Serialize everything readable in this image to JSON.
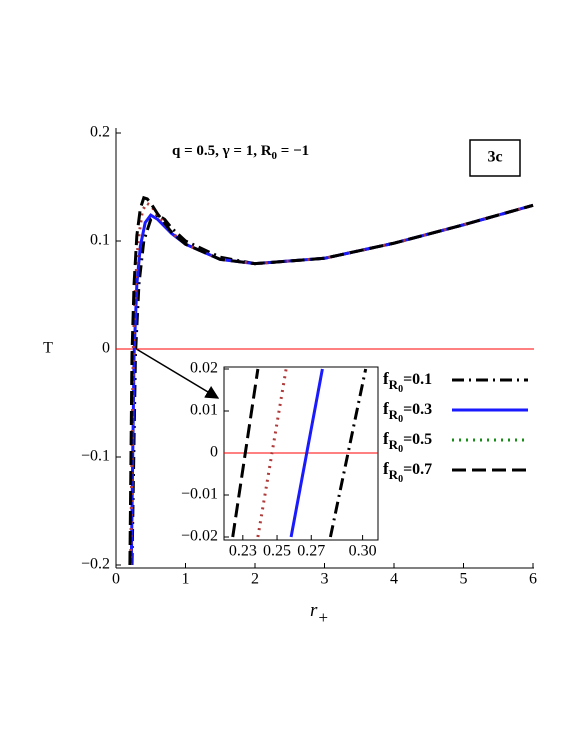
{
  "chart_data": [
    {
      "type": "line",
      "annotation": "q = 0.5, γ = 1, R0 = −1",
      "label": "3c",
      "xlabel": "r+",
      "ylabel": "T",
      "xlim": [
        0,
        6
      ],
      "ylim": [
        -0.2,
        0.2
      ],
      "xticks": [
        0,
        1,
        2,
        3,
        4,
        5,
        6
      ],
      "yticks": [
        {
          "value": -0.2,
          "label": "−0.2"
        },
        {
          "value": -0.1,
          "label": "−0.1"
        },
        0,
        0.1,
        0.2
      ],
      "hline": 0,
      "hline_color": "#ff0000",
      "legend": "right",
      "series": [
        {
          "name": "fR0=0.1",
          "color": "#000000",
          "legend_color": "#000000",
          "dash": "dashdot",
          "x": [
            0.23,
            0.28,
            0.33,
            0.4,
            0.5,
            0.6,
            0.7,
            0.8,
            1,
            1.5,
            2,
            3,
            4,
            5,
            6
          ],
          "values": [
            -0.2,
            -0.005,
            0.06,
            0.1,
            0.12,
            0.124,
            0.12,
            0.112,
            0.1,
            0.085,
            0.079,
            0.084,
            0.098,
            0.115,
            0.133
          ]
        },
        {
          "name": "fR0=0.3",
          "color": "#1a1aff",
          "legend_color": "#1a1aff",
          "dash": "solid",
          "x": [
            0.22,
            0.26,
            0.3,
            0.35,
            0.42,
            0.5,
            0.6,
            0.8,
            1,
            1.5,
            2,
            3,
            4,
            5,
            6
          ],
          "values": [
            -0.2,
            -0.005,
            0.06,
            0.095,
            0.117,
            0.124,
            0.12,
            0.107,
            0.097,
            0.083,
            0.079,
            0.084,
            0.098,
            0.115,
            0.133
          ]
        },
        {
          "name": "fR0=0.5",
          "color": "#b03a3a",
          "legend_color": "#1a8c1a",
          "dash": "dotted",
          "x": [
            0.21,
            0.25,
            0.28,
            0.32,
            0.38,
            0.44,
            0.5,
            0.6,
            0.8,
            1,
            1.5,
            2,
            3,
            4,
            5,
            6
          ],
          "values": [
            -0.2,
            0.005,
            0.06,
            0.1,
            0.128,
            0.135,
            0.133,
            0.124,
            0.108,
            0.097,
            0.083,
            0.079,
            0.084,
            0.098,
            0.115,
            0.133
          ]
        },
        {
          "name": "fR0=0.7",
          "color": "#000000",
          "legend_color": "#000000",
          "dash": "dashed",
          "x": [
            0.2,
            0.23,
            0.26,
            0.3,
            0.35,
            0.4,
            0.45,
            0.5,
            0.6,
            0.8,
            1,
            1.5,
            2,
            3,
            4,
            5,
            6
          ],
          "values": [
            -0.2,
            -0.005,
            0.06,
            0.105,
            0.13,
            0.14,
            0.139,
            0.135,
            0.125,
            0.108,
            0.097,
            0.083,
            0.079,
            0.084,
            0.098,
            0.115,
            0.133
          ]
        }
      ]
    },
    {
      "type": "line",
      "xlim": [
        0.219,
        0.309
      ],
      "ylim": [
        -0.02,
        0.02
      ],
      "xticks": [
        0.23,
        0.25,
        0.27,
        {
          "value": 0.3,
          "label": "0.30"
        }
      ],
      "yticks": [
        {
          "value": -0.02,
          "label": "−0.02"
        },
        {
          "value": -0.01,
          "label": "−0.01"
        },
        0,
        0.01,
        0.02
      ],
      "hline": 0,
      "hline_color": "#ff0000",
      "series": [
        {
          "color": "#000000",
          "dash": "dashdot",
          "x": [
            0.2812,
            0.3018
          ],
          "values": [
            -0.02,
            0.02
          ]
        },
        {
          "color": "#1a1aff",
          "dash": "solid",
          "x": [
            0.2582,
            0.2765
          ],
          "values": [
            -0.02,
            0.02
          ]
        },
        {
          "color": "#b03a3a",
          "dash": "dotted",
          "x": [
            0.2388,
            0.2553
          ],
          "values": [
            -0.02,
            0.02
          ]
        },
        {
          "color": "#000000",
          "dash": "dashed",
          "x": [
            0.2241,
            0.2388
          ],
          "values": [
            -0.02,
            0.02
          ]
        }
      ]
    }
  ]
}
